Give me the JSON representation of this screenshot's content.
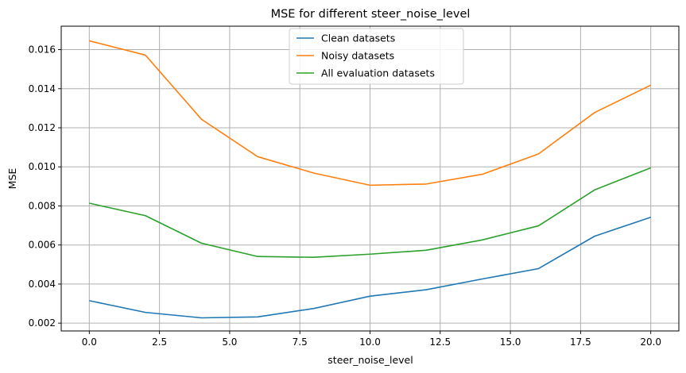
{
  "chart_data": {
    "type": "line",
    "title": "MSE for different steer_noise_level",
    "xlabel": "steer_noise_level",
    "ylabel": "MSE",
    "x": [
      0,
      2,
      4,
      6,
      8,
      10,
      12,
      14,
      16,
      18,
      20
    ],
    "xlim": [
      -1,
      21
    ],
    "ylim": [
      0.0016,
      0.0172
    ],
    "xticks": [
      0.0,
      2.5,
      5.0,
      7.5,
      10.0,
      12.5,
      15.0,
      17.5,
      20.0
    ],
    "xtick_labels": [
      "0.0",
      "2.5",
      "5.0",
      "7.5",
      "10.0",
      "12.5",
      "15.0",
      "17.5",
      "20.0"
    ],
    "yticks": [
      0.002,
      0.004,
      0.006,
      0.008,
      0.01,
      0.012,
      0.014,
      0.016
    ],
    "ytick_labels": [
      "0.002",
      "0.004",
      "0.006",
      "0.008",
      "0.010",
      "0.012",
      "0.014",
      "0.016"
    ],
    "grid": true,
    "legend_position": "top-center",
    "series": [
      {
        "name": "Clean datasets",
        "color": "#1f77b4",
        "values": [
          0.00315,
          0.00255,
          0.00227,
          0.00232,
          0.00275,
          0.00338,
          0.00371,
          0.00426,
          0.00479,
          0.00645,
          0.00742
        ]
      },
      {
        "name": "Noisy datasets",
        "color": "#ff7f0e",
        "values": [
          0.01645,
          0.01572,
          0.01243,
          0.01052,
          0.00968,
          0.00906,
          0.00912,
          0.00962,
          0.01066,
          0.01278,
          0.01418
        ]
      },
      {
        "name": "All evaluation datasets",
        "color": "#2ca02c",
        "values": [
          0.00814,
          0.0075,
          0.00609,
          0.00541,
          0.00537,
          0.00553,
          0.00573,
          0.00626,
          0.00698,
          0.00882,
          0.00995
        ]
      }
    ]
  }
}
